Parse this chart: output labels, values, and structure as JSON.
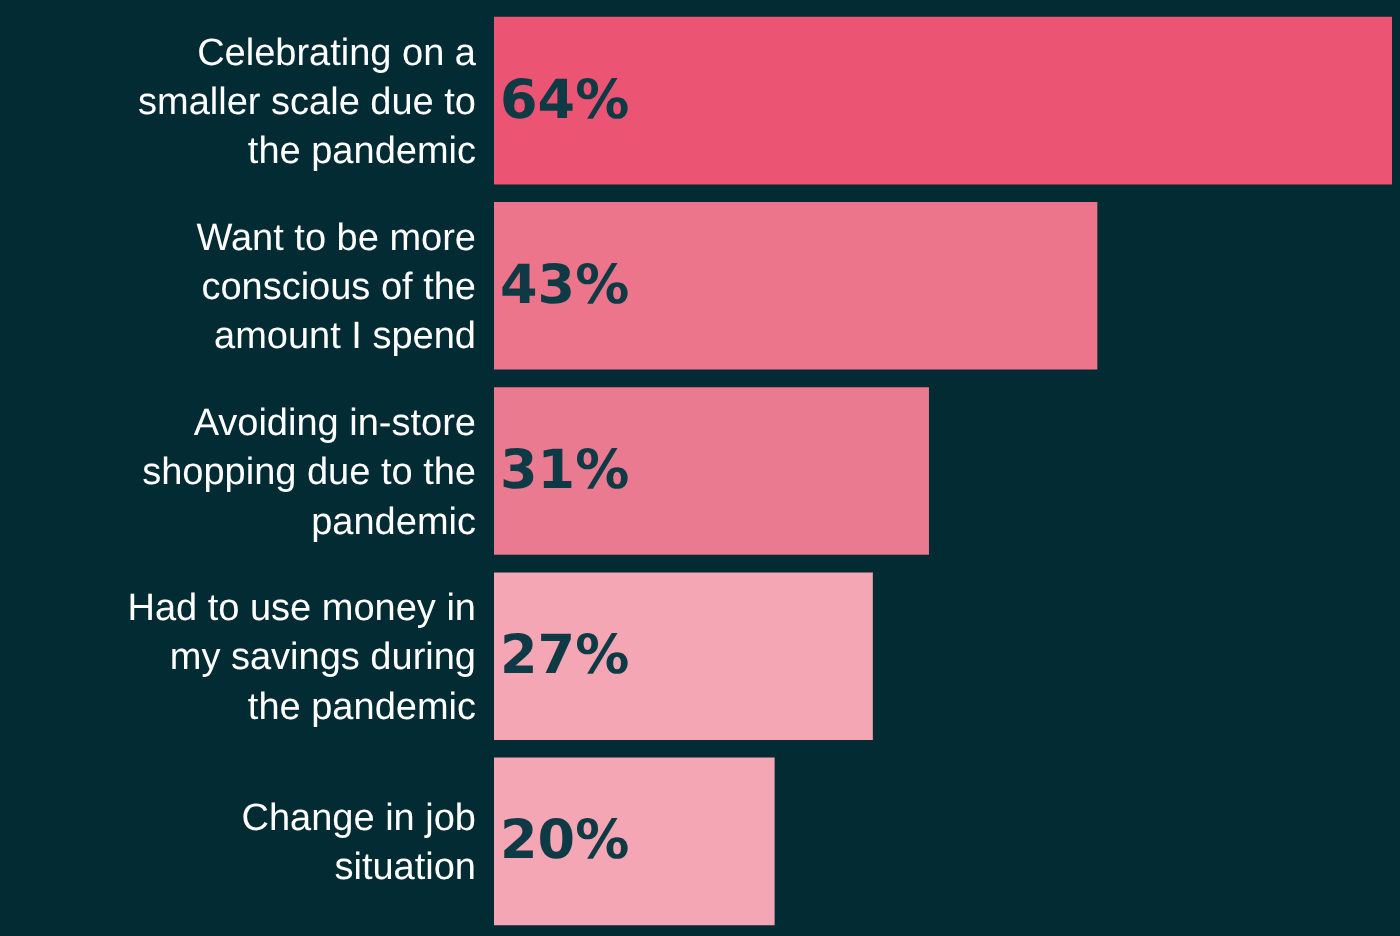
{
  "chart_data": {
    "type": "bar",
    "orientation": "horizontal",
    "categories": [
      "Celebrating on a smaller scale due to the pandemic",
      "Want to be more conscious of the amount I spend",
      "Avoiding in-store shopping due to the pandemic",
      "Had to use money in my savings during the pandemic",
      "Change in job situation"
    ],
    "values": [
      64,
      43,
      31,
      27,
      20
    ],
    "colors": [
      "#eb5473",
      "#ed758b",
      "#ea7a8f",
      "#f5a6b4",
      "#f5a6b4"
    ],
    "value_labels": [
      "64%",
      "43%",
      "31%",
      "27%",
      "20%"
    ],
    "grid": false,
    "legend": false
  }
}
